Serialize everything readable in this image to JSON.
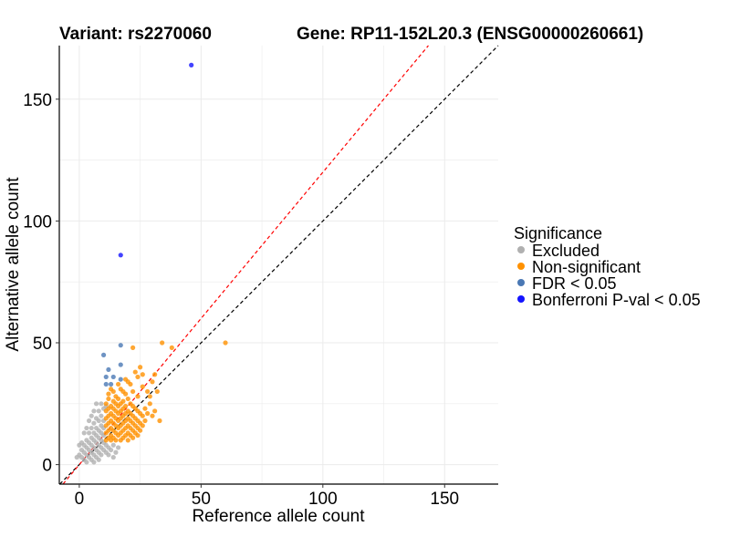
{
  "chart_data": {
    "type": "scatter",
    "title_left": "Variant: rs2270060",
    "title_right": "Gene: RP11-152L20.3 (ENSG00000260661)",
    "xlabel": "Reference allele count",
    "ylabel": "Alternative allele count",
    "xlim": [
      -8.2,
      172
    ],
    "ylim": [
      -8,
      172
    ],
    "xticks": [
      "0",
      "50",
      "100",
      "150"
    ],
    "yticks": [
      "0",
      "50",
      "100",
      "150"
    ],
    "grid": true,
    "reference_lines": [
      {
        "name": "identity",
        "slope": 1,
        "intercept": 0,
        "color": "#000000",
        "style": "dashed"
      },
      {
        "name": "expected-ratio",
        "slope": 1.2,
        "intercept": 0,
        "color": "#ff0000",
        "style": "dashed"
      }
    ],
    "legend": {
      "title": "Significance",
      "placement": "right",
      "entries": [
        "Excluded",
        "Non-significant",
        "FDR < 0.05",
        "Bonferroni P-val < 0.05"
      ]
    },
    "series": [
      {
        "name": "Excluded",
        "color": "#b0b0b0",
        "points": [
          [
            0,
            4
          ],
          [
            1,
            3
          ],
          [
            1,
            6
          ],
          [
            2,
            2
          ],
          [
            2,
            5
          ],
          [
            2,
            8
          ],
          [
            3,
            4
          ],
          [
            3,
            7
          ],
          [
            3,
            10
          ],
          [
            4,
            3
          ],
          [
            4,
            6
          ],
          [
            4,
            9
          ],
          [
            4,
            13
          ],
          [
            5,
            2
          ],
          [
            5,
            5
          ],
          [
            5,
            8
          ],
          [
            5,
            11
          ],
          [
            5,
            15
          ],
          [
            6,
            4
          ],
          [
            6,
            7
          ],
          [
            6,
            10
          ],
          [
            6,
            13
          ],
          [
            6,
            17
          ],
          [
            7,
            3
          ],
          [
            7,
            6
          ],
          [
            7,
            9
          ],
          [
            7,
            12
          ],
          [
            7,
            15
          ],
          [
            7,
            19
          ],
          [
            8,
            5
          ],
          [
            8,
            8
          ],
          [
            8,
            11
          ],
          [
            8,
            14
          ],
          [
            8,
            18
          ],
          [
            8,
            22
          ],
          [
            9,
            4
          ],
          [
            9,
            7
          ],
          [
            9,
            10
          ],
          [
            9,
            13
          ],
          [
            9,
            16
          ],
          [
            9,
            20
          ],
          [
            10,
            6
          ],
          [
            10,
            9
          ],
          [
            10,
            12
          ],
          [
            10,
            15
          ],
          [
            10,
            18
          ],
          [
            10,
            23
          ],
          [
            11,
            5
          ],
          [
            11,
            8
          ],
          [
            11,
            24
          ],
          [
            3,
            15
          ],
          [
            4,
            18
          ],
          [
            5,
            20
          ],
          [
            2,
            13
          ],
          [
            6,
            22
          ],
          [
            12,
            4
          ],
          [
            13,
            6
          ],
          [
            14,
            3
          ],
          [
            15,
            5
          ],
          [
            16,
            7
          ],
          [
            7,
            25
          ],
          [
            9,
            25
          ],
          [
            1,
            9
          ],
          [
            0,
            8
          ],
          [
            -1,
            3
          ],
          [
            3,
            1
          ],
          [
            6,
            1
          ],
          [
            12,
            7
          ],
          [
            14,
            8
          ],
          [
            8,
            2
          ]
        ]
      },
      {
        "name": "Non-significant",
        "color": "#ff9100",
        "points": [
          [
            11,
            10
          ],
          [
            11,
            13
          ],
          [
            11,
            16
          ],
          [
            11,
            19
          ],
          [
            11,
            22
          ],
          [
            11,
            25
          ],
          [
            12,
            11
          ],
          [
            12,
            14
          ],
          [
            12,
            17
          ],
          [
            12,
            20
          ],
          [
            12,
            23
          ],
          [
            12,
            27
          ],
          [
            13,
            10
          ],
          [
            13,
            12
          ],
          [
            13,
            15
          ],
          [
            13,
            18
          ],
          [
            13,
            21
          ],
          [
            13,
            24
          ],
          [
            14,
            11
          ],
          [
            14,
            14
          ],
          [
            14,
            17
          ],
          [
            14,
            20
          ],
          [
            14,
            23
          ],
          [
            14,
            26
          ],
          [
            14,
            30
          ],
          [
            15,
            10
          ],
          [
            15,
            13
          ],
          [
            15,
            16
          ],
          [
            15,
            19
          ],
          [
            15,
            22
          ],
          [
            15,
            25
          ],
          [
            15,
            28
          ],
          [
            16,
            12
          ],
          [
            16,
            15
          ],
          [
            16,
            18
          ],
          [
            16,
            21
          ],
          [
            16,
            24
          ],
          [
            16,
            27
          ],
          [
            17,
            10
          ],
          [
            17,
            13
          ],
          [
            17,
            16
          ],
          [
            17,
            19
          ],
          [
            17,
            22
          ],
          [
            17,
            25
          ],
          [
            17,
            31
          ],
          [
            18,
            11
          ],
          [
            18,
            14
          ],
          [
            18,
            17
          ],
          [
            18,
            20
          ],
          [
            18,
            23
          ],
          [
            18,
            26
          ],
          [
            19,
            12
          ],
          [
            19,
            15
          ],
          [
            19,
            18
          ],
          [
            19,
            21
          ],
          [
            19,
            24
          ],
          [
            19,
            29
          ],
          [
            20,
            10
          ],
          [
            20,
            13
          ],
          [
            20,
            16
          ],
          [
            20,
            19
          ],
          [
            20,
            22
          ],
          [
            20,
            27
          ],
          [
            21,
            12
          ],
          [
            21,
            15
          ],
          [
            21,
            18
          ],
          [
            21,
            21
          ],
          [
            21,
            25
          ],
          [
            21,
            33
          ],
          [
            22,
            11
          ],
          [
            22,
            14
          ],
          [
            22,
            17
          ],
          [
            22,
            20
          ],
          [
            22,
            24
          ],
          [
            22,
            30
          ],
          [
            23,
            13
          ],
          [
            23,
            16
          ],
          [
            23,
            19
          ],
          [
            23,
            23
          ],
          [
            24,
            12
          ],
          [
            24,
            15
          ],
          [
            24,
            18
          ],
          [
            24,
            22
          ],
          [
            24,
            28
          ],
          [
            25,
            14
          ],
          [
            25,
            17
          ],
          [
            25,
            21
          ],
          [
            26,
            16
          ],
          [
            26,
            20
          ],
          [
            27,
            18
          ],
          [
            27,
            23
          ],
          [
            28,
            21
          ],
          [
            29,
            25
          ],
          [
            30,
            20
          ],
          [
            31,
            22
          ],
          [
            33,
            18
          ],
          [
            28,
            30
          ],
          [
            30,
            34
          ],
          [
            26,
            32
          ],
          [
            24,
            36
          ],
          [
            22,
            48
          ],
          [
            34,
            50
          ],
          [
            38,
            48
          ],
          [
            60,
            50
          ],
          [
            32,
            30
          ],
          [
            29,
            28
          ],
          [
            12,
            29
          ],
          [
            13,
            31
          ],
          [
            16,
            33
          ],
          [
            19,
            35
          ],
          [
            23,
            38
          ],
          [
            25,
            40
          ],
          [
            26,
            37
          ],
          [
            31,
            37
          ],
          [
            18,
            30
          ],
          [
            20,
            34
          ]
        ]
      },
      {
        "name": "FDR < 0.05",
        "color": "#4a78b4",
        "points": [
          [
            17,
            49
          ],
          [
            10,
            45
          ],
          [
            17,
            41
          ],
          [
            14,
            36
          ],
          [
            11,
            36
          ],
          [
            17,
            35
          ],
          [
            11,
            33
          ],
          [
            13,
            33
          ],
          [
            12,
            39
          ]
        ]
      },
      {
        "name": "Bonferroni P-val < 0.05",
        "color": "#1414ff",
        "points": [
          [
            46,
            164
          ],
          [
            17,
            86
          ]
        ]
      }
    ]
  }
}
